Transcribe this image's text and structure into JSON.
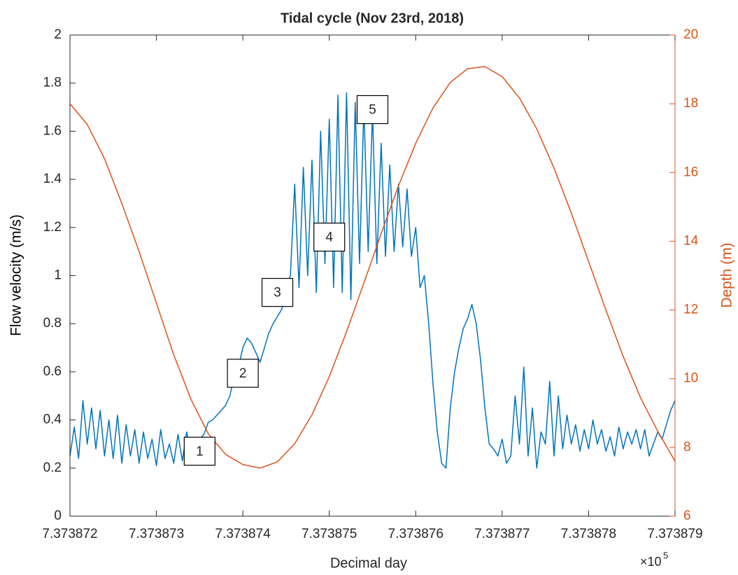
{
  "chart_data": {
    "type": "line",
    "title": "Tidal cycle (Nov 23rd, 2018)",
    "x_label": "Decimal day",
    "x_scale_label": "×10",
    "x_scale_exponent": 5,
    "y_label": "Flow velocity (m/s)",
    "y2_label": "Depth (m)",
    "xlim": [
      7.373872,
      7.373879
    ],
    "xticks": [
      7.373872,
      7.373873,
      7.373874,
      7.373875,
      7.373876,
      7.373877,
      7.373878,
      7.373879
    ],
    "ylim": [
      0,
      2
    ],
    "yticks": [
      0,
      0.2,
      0.4,
      0.6,
      0.8,
      1,
      1.2,
      1.4,
      1.6,
      1.8,
      2
    ],
    "y2lim": [
      6,
      20
    ],
    "y2ticks": [
      6,
      8,
      10,
      12,
      14,
      16,
      18,
      20
    ],
    "y2_color": "#D95319",
    "series": [
      {
        "color": "#0072BD",
        "x": [
          7.373872,
          7.37387205,
          7.3738721,
          7.37387215,
          7.3738722,
          7.37387225,
          7.3738723,
          7.37387235,
          7.3738724,
          7.37387245,
          7.3738725,
          7.37387255,
          7.3738726,
          7.37387265,
          7.3738727,
          7.37387275,
          7.3738728,
          7.37387285,
          7.3738729,
          7.37387295,
          7.373873,
          7.37387305,
          7.3738731,
          7.37387315,
          7.3738732,
          7.37387325,
          7.3738733,
          7.37387335,
          7.3738734,
          7.37387345,
          7.3738735,
          7.37387355,
          7.3738736,
          7.37387365,
          7.3738737,
          7.37387375,
          7.3738738,
          7.37387385,
          7.3738739,
          7.37387395,
          7.373874,
          7.37387405,
          7.3738741,
          7.37387415,
          7.3738742,
          7.37387425,
          7.3738743,
          7.37387435,
          7.3738744,
          7.37387445,
          7.3738745,
          7.37387455,
          7.3738746,
          7.37387465,
          7.3738747,
          7.37387475,
          7.3738748,
          7.37387485,
          7.3738749,
          7.37387495,
          7.373875,
          7.37387505,
          7.3738751,
          7.37387515,
          7.3738752,
          7.37387525,
          7.3738753,
          7.37387535,
          7.3738754,
          7.37387545,
          7.3738755,
          7.37387555,
          7.3738756,
          7.37387565,
          7.3738757,
          7.37387575,
          7.3738758,
          7.37387585,
          7.3738759,
          7.37387595,
          7.373876,
          7.37387605,
          7.3738761,
          7.37387615,
          7.3738762,
          7.37387625,
          7.3738763,
          7.37387635,
          7.3738764,
          7.37387645,
          7.3738765,
          7.37387655,
          7.3738766,
          7.37387665,
          7.3738767,
          7.37387675,
          7.3738768,
          7.37387685,
          7.3738769,
          7.37387695,
          7.373877,
          7.37387705,
          7.3738771,
          7.37387715,
          7.3738772,
          7.37387725,
          7.3738773,
          7.37387735,
          7.3738774,
          7.37387745,
          7.3738775,
          7.37387755,
          7.3738776,
          7.37387765,
          7.3738777,
          7.37387775,
          7.3738778,
          7.37387785,
          7.3738779,
          7.37387795,
          7.373878,
          7.37387805,
          7.3738781,
          7.37387815,
          7.3738782,
          7.37387825,
          7.3738783,
          7.37387835,
          7.3738784,
          7.37387845,
          7.3738785,
          7.37387855,
          7.3738786,
          7.37387865,
          7.3738787,
          7.37387875,
          7.3738788,
          7.37387885,
          7.3738789,
          7.37387895,
          7.373879
        ],
        "values": [
          0.25,
          0.37,
          0.24,
          0.48,
          0.3,
          0.45,
          0.28,
          0.44,
          0.25,
          0.4,
          0.24,
          0.42,
          0.22,
          0.38,
          0.25,
          0.36,
          0.22,
          0.35,
          0.24,
          0.32,
          0.21,
          0.36,
          0.24,
          0.3,
          0.22,
          0.34,
          0.23,
          0.35,
          0.26,
          0.3,
          0.32,
          0.34,
          0.39,
          0.4,
          0.42,
          0.44,
          0.46,
          0.5,
          0.58,
          0.62,
          0.7,
          0.74,
          0.72,
          0.68,
          0.64,
          0.7,
          0.76,
          0.8,
          0.83,
          0.86,
          0.95,
          1.0,
          1.38,
          0.95,
          1.45,
          1.0,
          1.48,
          0.93,
          1.6,
          1.05,
          1.65,
          0.95,
          1.75,
          0.93,
          1.76,
          0.9,
          1.72,
          1.05,
          1.7,
          1.1,
          1.68,
          1.05,
          1.55,
          1.08,
          1.46,
          1.1,
          1.38,
          1.12,
          1.36,
          1.08,
          1.2,
          0.95,
          1.0,
          0.8,
          0.55,
          0.35,
          0.22,
          0.2,
          0.45,
          0.6,
          0.7,
          0.78,
          0.82,
          0.88,
          0.8,
          0.65,
          0.45,
          0.3,
          0.28,
          0.25,
          0.32,
          0.22,
          0.25,
          0.5,
          0.3,
          0.62,
          0.25,
          0.45,
          0.2,
          0.35,
          0.3,
          0.56,
          0.25,
          0.5,
          0.28,
          0.42,
          0.3,
          0.38,
          0.27,
          0.36,
          0.28,
          0.4,
          0.3,
          0.36,
          0.27,
          0.33,
          0.25,
          0.37,
          0.28,
          0.35,
          0.3,
          0.36,
          0.28,
          0.36,
          0.25,
          0.3,
          0.35,
          0.32,
          0.38,
          0.44,
          0.48
        ]
      },
      {
        "color": "#D95319",
        "axis": "y2",
        "x": [
          7.373872,
          7.3738722,
          7.3738724,
          7.3738726,
          7.3738728,
          7.373873,
          7.3738732,
          7.3738734,
          7.3738736,
          7.3738738,
          7.373874,
          7.3738742,
          7.3738744,
          7.3738746,
          7.3738748,
          7.373875,
          7.3738752,
          7.3738754,
          7.3738756,
          7.3738758,
          7.373876,
          7.3738762,
          7.3738764,
          7.3738766,
          7.3738768,
          7.373877,
          7.3738772,
          7.3738774,
          7.3738776,
          7.3738778,
          7.373878,
          7.3738782,
          7.3738784,
          7.3738786,
          7.3738788,
          7.373879
        ],
        "values": [
          18.0,
          17.4,
          16.4,
          15.1,
          13.7,
          12.2,
          10.7,
          9.4,
          8.4,
          7.8,
          7.5,
          7.4,
          7.58,
          8.11,
          8.95,
          10.06,
          11.37,
          12.78,
          14.22,
          15.61,
          16.85,
          17.88,
          18.62,
          19.02,
          19.08,
          18.79,
          18.17,
          17.27,
          16.13,
          14.82,
          13.41,
          12.0,
          10.65,
          9.45,
          8.47,
          7.6
        ]
      }
    ],
    "annotations": [
      {
        "text": "1",
        "x": 7.3738735,
        "y": 0.27
      },
      {
        "text": "2",
        "x": 7.373874,
        "y": 0.594
      },
      {
        "text": "3",
        "x": 7.3738744,
        "y": 0.93
      },
      {
        "text": "4",
        "x": 7.373875,
        "y": 1.16
      },
      {
        "text": "5",
        "x": 7.3738755,
        "y": 1.69
      }
    ]
  }
}
